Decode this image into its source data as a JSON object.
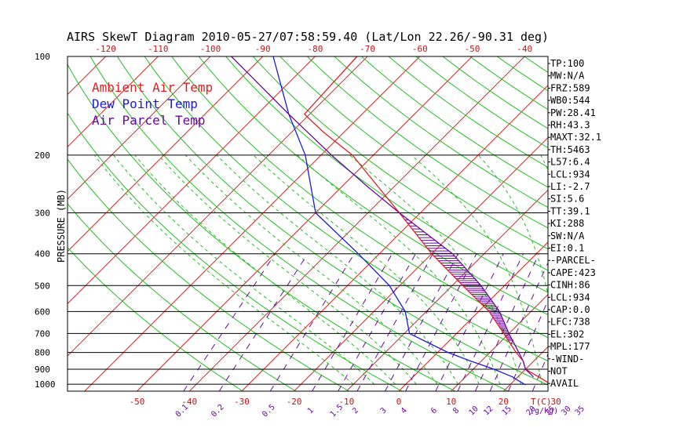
{
  "chart_data": {
    "type": "skewt",
    "title": "AIRS SkewT Diagram 2010-05-27/07:58:59.40 (Lat/Lon 22.26/-90.31 deg)",
    "ylabel": "PRESSURE (MB)",
    "pressure_ticks": [
      "100",
      "200",
      "300",
      "400",
      "500",
      "600",
      "700",
      "800",
      "900",
      "1000"
    ],
    "pressure_ticks_values": [
      100,
      200,
      300,
      400,
      500,
      600,
      700,
      800,
      900,
      1000
    ],
    "top_temp_ticks": [
      "-120",
      "-110",
      "-100",
      "-90",
      "-80",
      "-70",
      "-60",
      "-50",
      "-40"
    ],
    "top_temp_values": [
      -120,
      -110,
      -100,
      -90,
      -80,
      -70,
      -60,
      -50,
      -40
    ],
    "bottom_temp_ticks": [
      "-50",
      "-40",
      "-30",
      "-20",
      "-10",
      "0",
      "10",
      "20",
      "30"
    ],
    "bottom_temp_values": [
      -50,
      -40,
      -30,
      -20,
      -10,
      0,
      10,
      20,
      30
    ],
    "bottom_temp_unit": "T(C)",
    "mixing_ratio_ticks": [
      "0.1",
      "0.2",
      "0.5",
      "1",
      "1.5",
      "2",
      "3",
      "4",
      "6",
      "8",
      "10",
      "12",
      "15",
      "20",
      "25",
      "30",
      "35"
    ],
    "mixing_ratio_values": [
      0.1,
      0.2,
      0.5,
      1,
      1.5,
      2,
      3,
      4,
      6,
      8,
      10,
      12,
      15,
      20,
      25,
      30,
      35
    ],
    "mixing_ratio_unit": "(g/kg)",
    "legend": [
      {
        "label": "Ambient Air Temp",
        "color": "#e02020"
      },
      {
        "label": "Dew Point Temp",
        "color": "#1a1adf"
      },
      {
        "label": "Air Parcel Temp",
        "color": "#6a0aa0"
      }
    ],
    "series": [
      {
        "name": "Ambient Air Temp",
        "color": "#e02020",
        "points": [
          [
            1005,
            28
          ],
          [
            950,
            24
          ],
          [
            900,
            20
          ],
          [
            850,
            18
          ],
          [
            800,
            15
          ],
          [
            700,
            9
          ],
          [
            600,
            2
          ],
          [
            500,
            -8
          ],
          [
            400,
            -20
          ],
          [
            300,
            -34
          ],
          [
            250,
            -43
          ],
          [
            200,
            -54
          ],
          [
            170,
            -64
          ],
          [
            150,
            -71
          ],
          [
            100,
            -72
          ]
        ]
      },
      {
        "name": "Dew Point Temp",
        "color": "#1a1adf",
        "points": [
          [
            1005,
            23
          ],
          [
            950,
            19
          ],
          [
            900,
            14
          ],
          [
            850,
            8
          ],
          [
            800,
            2
          ],
          [
            700,
            -9
          ],
          [
            600,
            -14
          ],
          [
            500,
            -22
          ],
          [
            400,
            -34
          ],
          [
            300,
            -50
          ],
          [
            200,
            -63
          ],
          [
            150,
            -74
          ],
          [
            100,
            -88
          ]
        ]
      },
      {
        "name": "Air Parcel Temp",
        "color": "#6a0aa0",
        "points": [
          [
            950,
            23
          ],
          [
            900,
            20
          ],
          [
            850,
            18
          ],
          [
            800,
            15.5
          ],
          [
            700,
            10
          ],
          [
            600,
            4
          ],
          [
            500,
            -4.5
          ],
          [
            400,
            -16
          ],
          [
            300,
            -34
          ],
          [
            250,
            -45
          ],
          [
            200,
            -58
          ],
          [
            150,
            -74
          ],
          [
            100,
            -96
          ]
        ]
      }
    ],
    "indices": [
      "TP:100",
      "MW:N/A",
      "FRZ:589",
      "WB0:544",
      "PW:28.41",
      "RH:43.3",
      "MAXT:32.1",
      "TH:5463",
      "L57:6.4",
      "LCL:934",
      "LI:-2.7",
      "SI:5.6",
      "TT:39.1",
      "KI:288",
      "SW:N/A",
      "EI:0.1",
      "-PARCEL-",
      "CAPE:423",
      "CINH:86",
      "LCL:934",
      "CAP:0.0",
      "LFC:738",
      "EL:302",
      "MPL:177",
      "-WIND-",
      "NOT",
      "AVAIL"
    ],
    "colors": {
      "isotherm": "#e02020",
      "dry_adiabat": "#20c020",
      "moist_adiabat": "#20c020",
      "mixing_ratio": "#6a0aa0",
      "isobar": "#000000",
      "cape_hatch": "#6a0aa0"
    }
  }
}
